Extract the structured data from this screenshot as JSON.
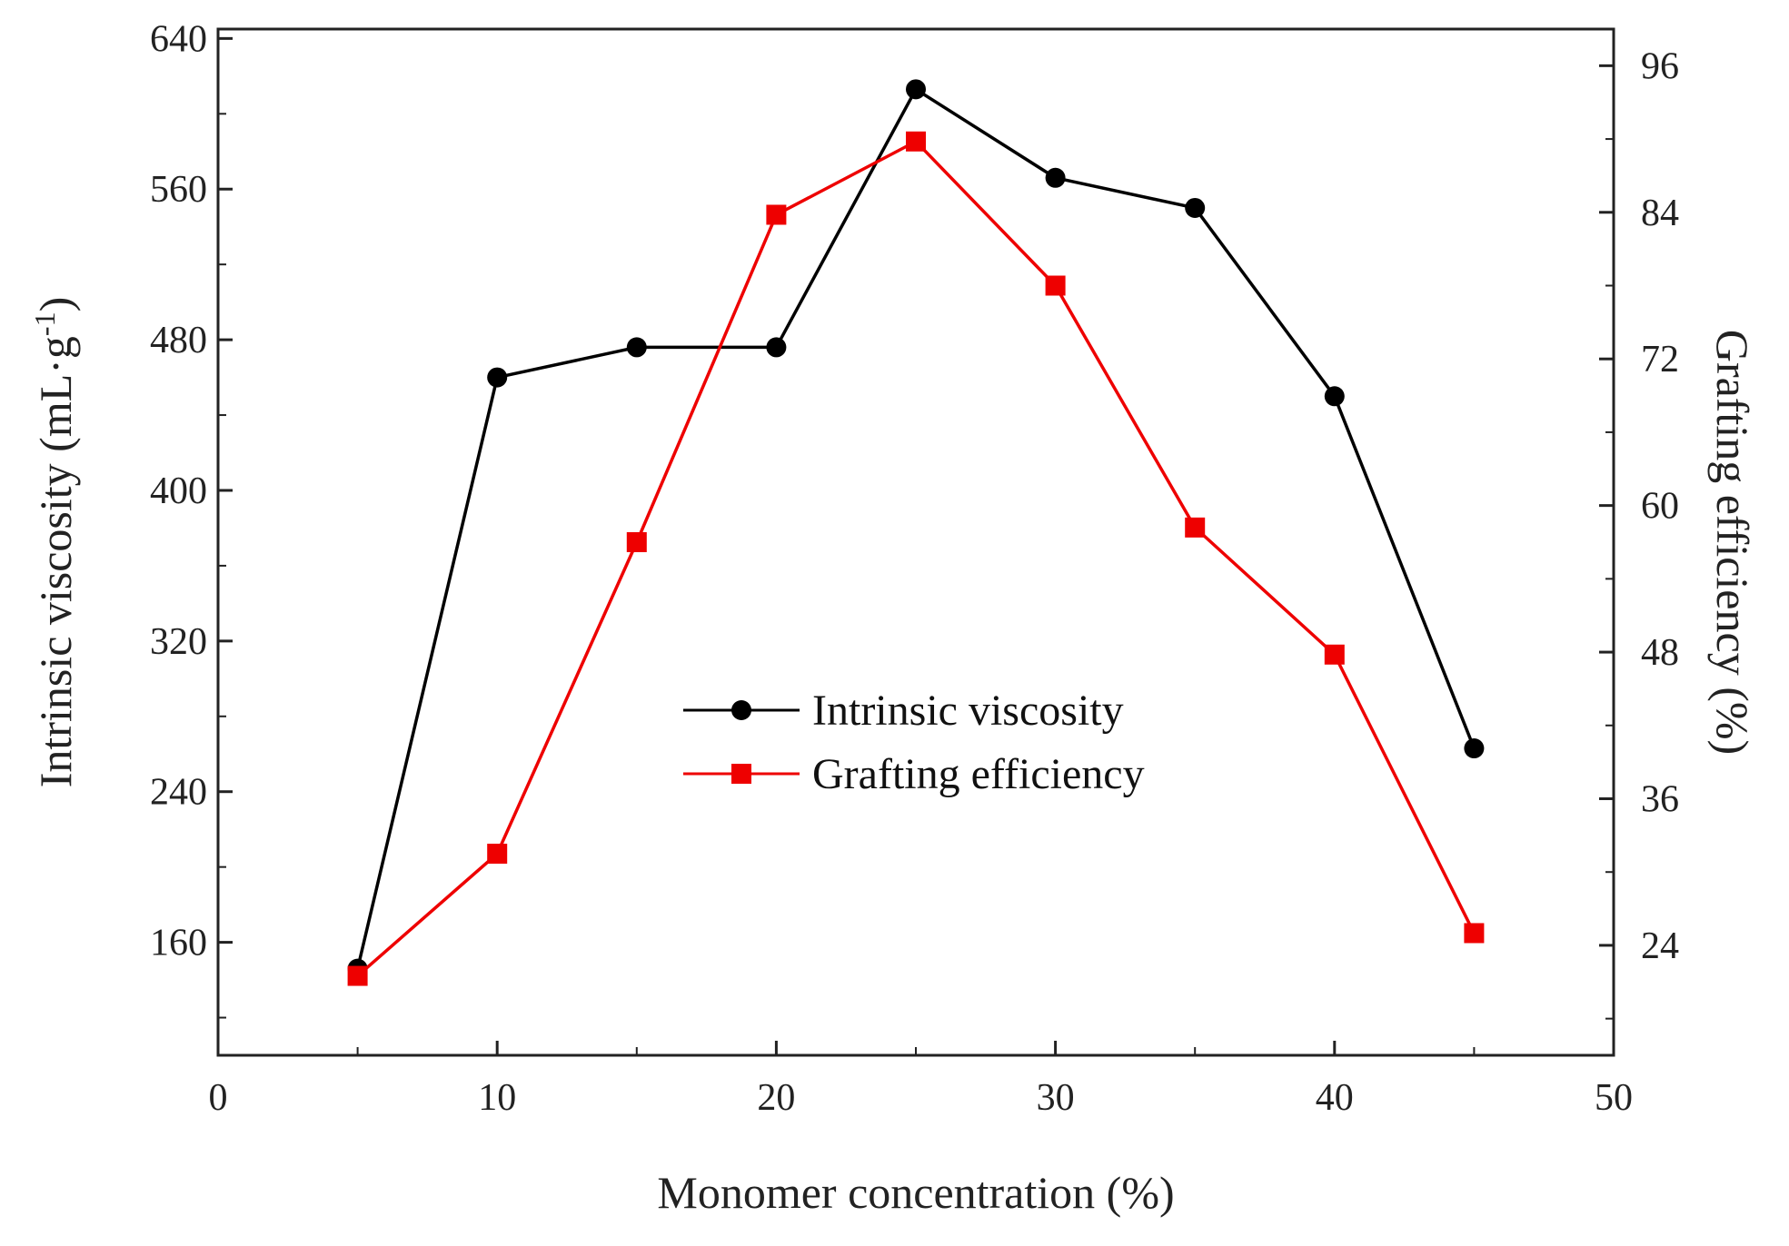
{
  "chart_data": {
    "type": "line",
    "xlabel": "Monomer concentration (%)",
    "ylabel_left_main": "Intrinsic viscosity (mL·g",
    "ylabel_left_sup": "-1",
    "ylabel_left_end": ")",
    "ylabel_right": "Grafting efficiency (%)",
    "xlim": [
      0,
      50
    ],
    "ylim_left": [
      100,
      645
    ],
    "ylim_right": [
      15,
      99
    ],
    "x_ticks": [
      0,
      10,
      20,
      30,
      40,
      50
    ],
    "y_left_ticks": [
      160,
      240,
      320,
      400,
      480,
      560,
      640
    ],
    "y_right_ticks": [
      24,
      36,
      48,
      60,
      72,
      84,
      96
    ],
    "legend_position": "center",
    "grid": false,
    "series": [
      {
        "name": "Intrinsic viscosity",
        "axis": "left",
        "color": "#000000",
        "marker": "circle",
        "x": [
          5,
          10,
          15,
          20,
          25,
          30,
          35,
          40,
          45
        ],
        "y": [
          146,
          460,
          476,
          476,
          613,
          566,
          550,
          450,
          263
        ]
      },
      {
        "name": "Grafting efficiency",
        "axis": "right",
        "color": "#ee0000",
        "marker": "square",
        "x": [
          5,
          10,
          15,
          20,
          25,
          30,
          35,
          40,
          45
        ],
        "y": [
          21.5,
          31.5,
          57,
          83.8,
          89.8,
          78,
          58.2,
          47.8,
          25
        ]
      }
    ]
  }
}
